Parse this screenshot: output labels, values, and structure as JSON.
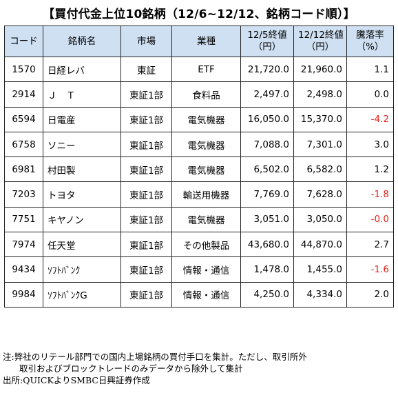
{
  "title": "【買付代金上位10銘柄（12/6~12/12、銘柄コード順）】",
  "table": {
    "headers": [
      "コード",
      "銘柄名",
      "市場",
      "業種",
      "12/5終値\n（円）",
      "12/12終値\n（円）",
      "騰落率\n（%）"
    ],
    "rows": [
      {
        "code": "1570",
        "name": "日経レバ",
        "market": "東証",
        "sector": "ETF",
        "close_prev": "21,720.0",
        "close_curr": "21,960.0",
        "change": "1.1"
      },
      {
        "code": "2914",
        "name": "Ｊ　Ｔ",
        "market": "東証1部",
        "sector": "食料品",
        "close_prev": "2,497.0",
        "close_curr": "2,498.0",
        "change": "0.0"
      },
      {
        "code": "6594",
        "name": "日電産",
        "market": "東証1部",
        "sector": "電気機器",
        "close_prev": "16,050.0",
        "close_curr": "15,370.0",
        "change": "-4.2"
      },
      {
        "code": "6758",
        "name": "ソニー",
        "market": "東証1部",
        "sector": "電気機器",
        "close_prev": "7,088.0",
        "close_curr": "7,301.0",
        "change": "3.0"
      },
      {
        "code": "6981",
        "name": "村田製",
        "market": "東証1部",
        "sector": "電気機器",
        "close_prev": "6,502.0",
        "close_curr": "6,582.0",
        "change": "1.2"
      },
      {
        "code": "7203",
        "name": "トヨタ",
        "market": "東証1部",
        "sector": "輸送用機器",
        "close_prev": "7,769.0",
        "close_curr": "7,628.0",
        "change": "-1.8"
      },
      {
        "code": "7751",
        "name": "キヤノン",
        "market": "東証1部",
        "sector": "電気機器",
        "close_prev": "3,051.0",
        "close_curr": "3,050.0",
        "change": "-0.0"
      },
      {
        "code": "7974",
        "name": "任天堂",
        "market": "東証1部",
        "sector": "その他製品",
        "close_prev": "43,680.0",
        "close_curr": "44,870.0",
        "change": "2.7"
      },
      {
        "code": "9434",
        "name": "ｿﾌﾄﾊﾞﾝｸ",
        "market": "東証1部",
        "sector": "情報・通信",
        "close_prev": "1,478.0",
        "close_curr": "1,455.0",
        "change": "-1.6"
      },
      {
        "code": "9984",
        "name": "ｿﾌﾄﾊﾞﾝｸG",
        "market": "東証1部",
        "sector": "情報・通信",
        "close_prev": "4,250.0",
        "close_curr": "4,334.0",
        "change": "2.0"
      }
    ]
  },
  "notes": {
    "line1": "注:弊社のリテール部門での国内上場銘柄の買付手口を集計。ただし、取引所外",
    "line2": "取引およびブロックトレードのみデータから除外して集計",
    "source": "出所:QUICKよりSMBC日興証券作成"
  },
  "colors": {
    "header_bg": "#cfe0f2",
    "negative": "#e8231a",
    "border": "#222222"
  }
}
